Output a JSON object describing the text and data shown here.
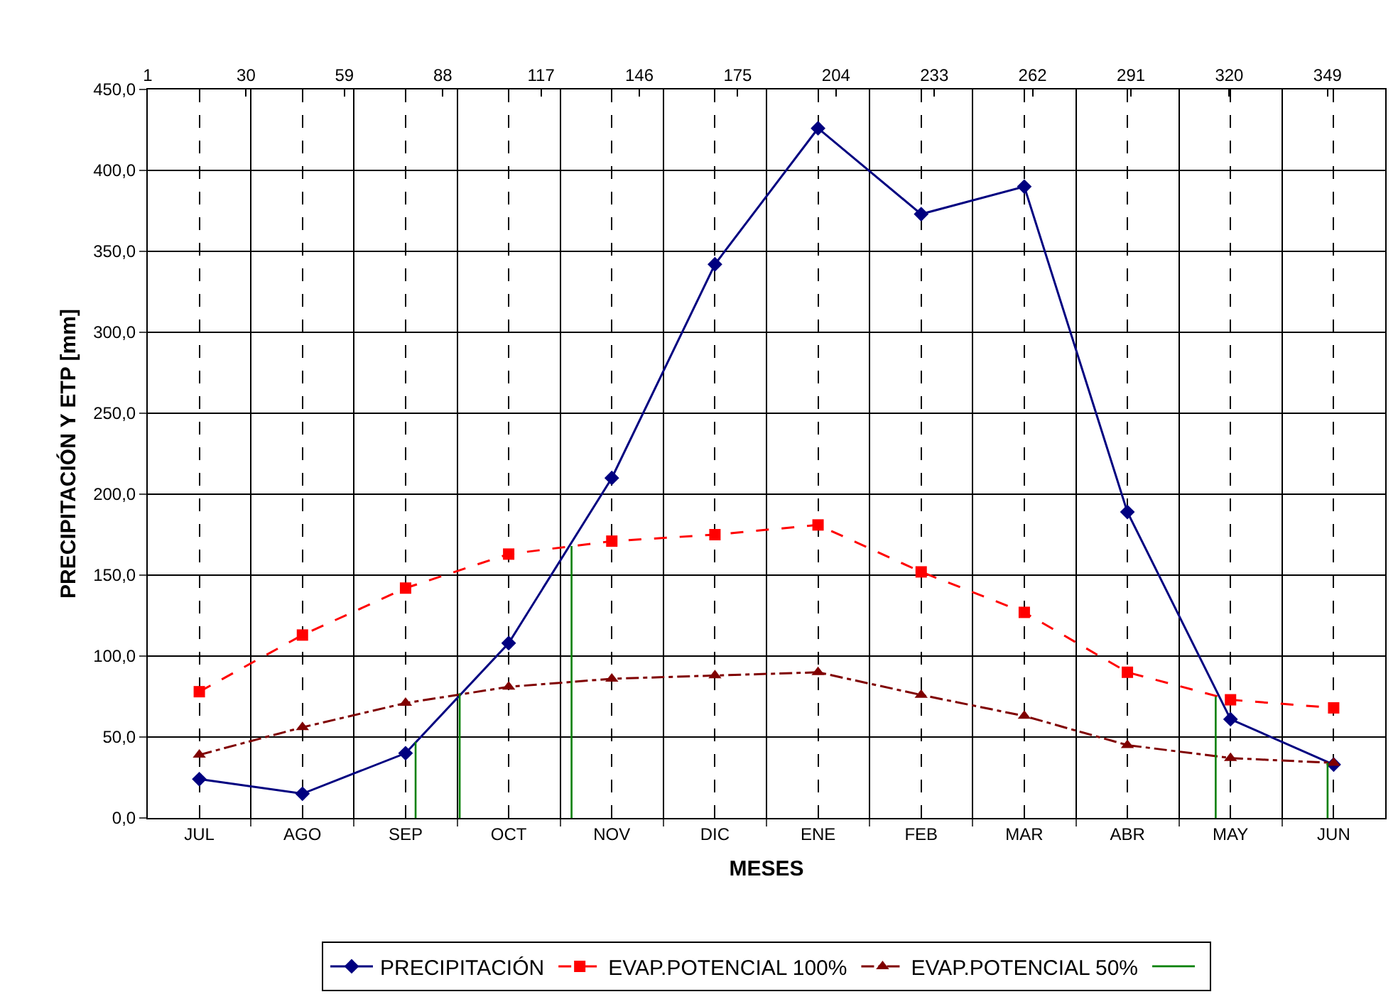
{
  "chart_data": {
    "type": "line",
    "xlabel": "MESES",
    "ylabel": "PRECIPITACIÓN Y ETP [mm]",
    "categories": [
      "JUL",
      "AGO",
      "SEP",
      "OCT",
      "NOV",
      "DIC",
      "ENE",
      "FEB",
      "MAR",
      "ABR",
      "MAY",
      "JUN"
    ],
    "series": [
      {
        "name": "PRECIPITACIÓN",
        "color": "#000080",
        "marker": "diamond",
        "line_style": "solid",
        "values": [
          24,
          15,
          40,
          108,
          210,
          342,
          426,
          373,
          390,
          189,
          61,
          33
        ]
      },
      {
        "name": "EVAP.POTENCIAL 100%",
        "color": "#ff0000",
        "marker": "square",
        "line_style": "dashed",
        "values": [
          78,
          113,
          142,
          163,
          171,
          175,
          181,
          152,
          127,
          90,
          73,
          68
        ]
      },
      {
        "name": "EVAP.POTENCIAL 50%",
        "color": "#800000",
        "marker": "triangle",
        "line_style": "dashdot",
        "values": [
          39,
          56,
          71,
          81,
          86,
          88,
          90,
          76,
          63,
          45,
          37,
          34
        ]
      },
      {
        "color": "#008000",
        "axis": "x2",
        "marker": "none",
        "line_style": "solid",
        "x": [
          80,
          80,
          null,
          93,
          93,
          null,
          126,
          126,
          null,
          316,
          316,
          null,
          349,
          349
        ],
        "values": [
          0,
          47,
          null,
          0,
          77,
          null,
          0,
          168,
          null,
          0,
          75,
          null,
          0,
          34
        ]
      }
    ],
    "ylim": [
      0,
      450
    ],
    "yticks": [
      {
        "value": 0,
        "label": "0,0"
      },
      {
        "value": 50,
        "label": "50,0"
      },
      {
        "value": 100,
        "label": "100,0"
      },
      {
        "value": 150,
        "label": "150,0"
      },
      {
        "value": 200,
        "label": "200,0"
      },
      {
        "value": 250,
        "label": "250,0"
      },
      {
        "value": 300,
        "label": "300,0"
      },
      {
        "value": 350,
        "label": "350,0"
      },
      {
        "value": 400,
        "label": "400,0"
      },
      {
        "value": 450,
        "label": "450,0"
      }
    ],
    "x2lim": [
      1,
      366
    ],
    "x2ticks": [
      1,
      30,
      59,
      88,
      117,
      146,
      175,
      204,
      233,
      262,
      291,
      320,
      349
    ],
    "grid": true,
    "legend": "bottom"
  }
}
